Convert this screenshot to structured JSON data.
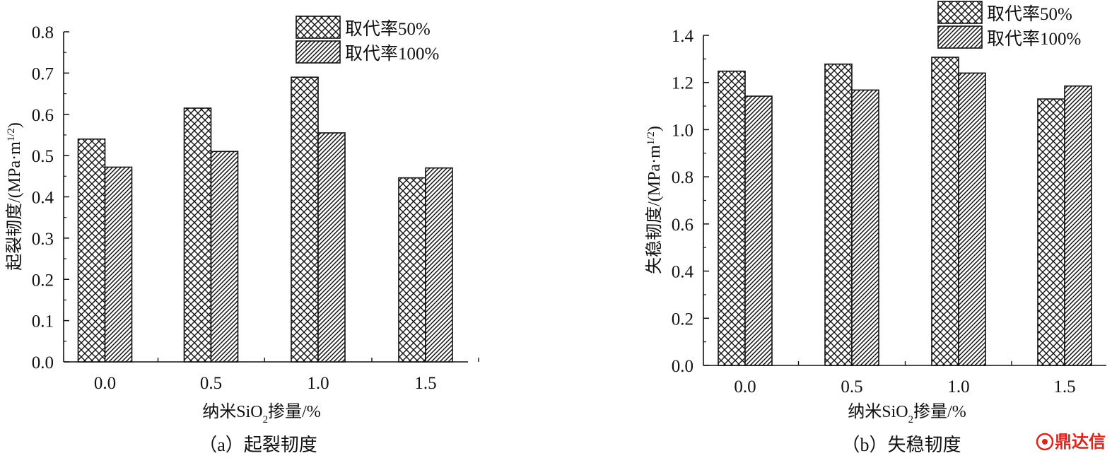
{
  "watermark": {
    "text": "鼎达信",
    "color": "#d7261e"
  },
  "chart_data": [
    {
      "type": "bar",
      "categories": [
        "0.0",
        "0.5",
        "1.0",
        "1.5"
      ],
      "series": [
        {
          "name": "取代率50%",
          "pattern": "crosshatch",
          "values": [
            0.54,
            0.615,
            0.69,
            0.446
          ]
        },
        {
          "name": "取代率100%",
          "pattern": "diagonal",
          "values": [
            0.472,
            0.51,
            0.555,
            0.47
          ]
        }
      ],
      "xlabel": {
        "pre": "纳米SiO",
        "sub": "2",
        "post": "掺量/%"
      },
      "ylabel": {
        "pre": "起裂韧度/(MPa·m",
        "sup": "1/2",
        "post": ")"
      },
      "ylim": [
        0,
        0.8
      ],
      "yticks": [
        "0.0",
        "0.1",
        "0.2",
        "0.3",
        "0.4",
        "0.5",
        "0.6",
        "0.7",
        "0.8"
      ],
      "caption": "（a）起裂韧度",
      "legend": "top-right",
      "grid": false
    },
    {
      "type": "bar",
      "categories": [
        "0.0",
        "0.5",
        "1.0",
        "1.5"
      ],
      "series": [
        {
          "name": "取代率50%",
          "pattern": "crosshatch",
          "values": [
            1.248,
            1.278,
            1.307,
            1.13
          ]
        },
        {
          "name": "取代率100%",
          "pattern": "diagonal",
          "values": [
            1.142,
            1.168,
            1.24,
            1.185
          ]
        }
      ],
      "xlabel": {
        "pre": "纳米SiO",
        "sub": "2",
        "post": "掺量/%"
      },
      "ylabel": {
        "pre": "失稳韧度/(MPa·m",
        "sup": "1/2",
        "post": ")"
      },
      "ylim": [
        0,
        1.4
      ],
      "yticks": [
        "0.0",
        "0.2",
        "0.4",
        "0.6",
        "0.8",
        "1.0",
        "1.2",
        "1.4"
      ],
      "caption": "（b）失稳韧度",
      "legend": "top-right",
      "grid": false
    }
  ]
}
